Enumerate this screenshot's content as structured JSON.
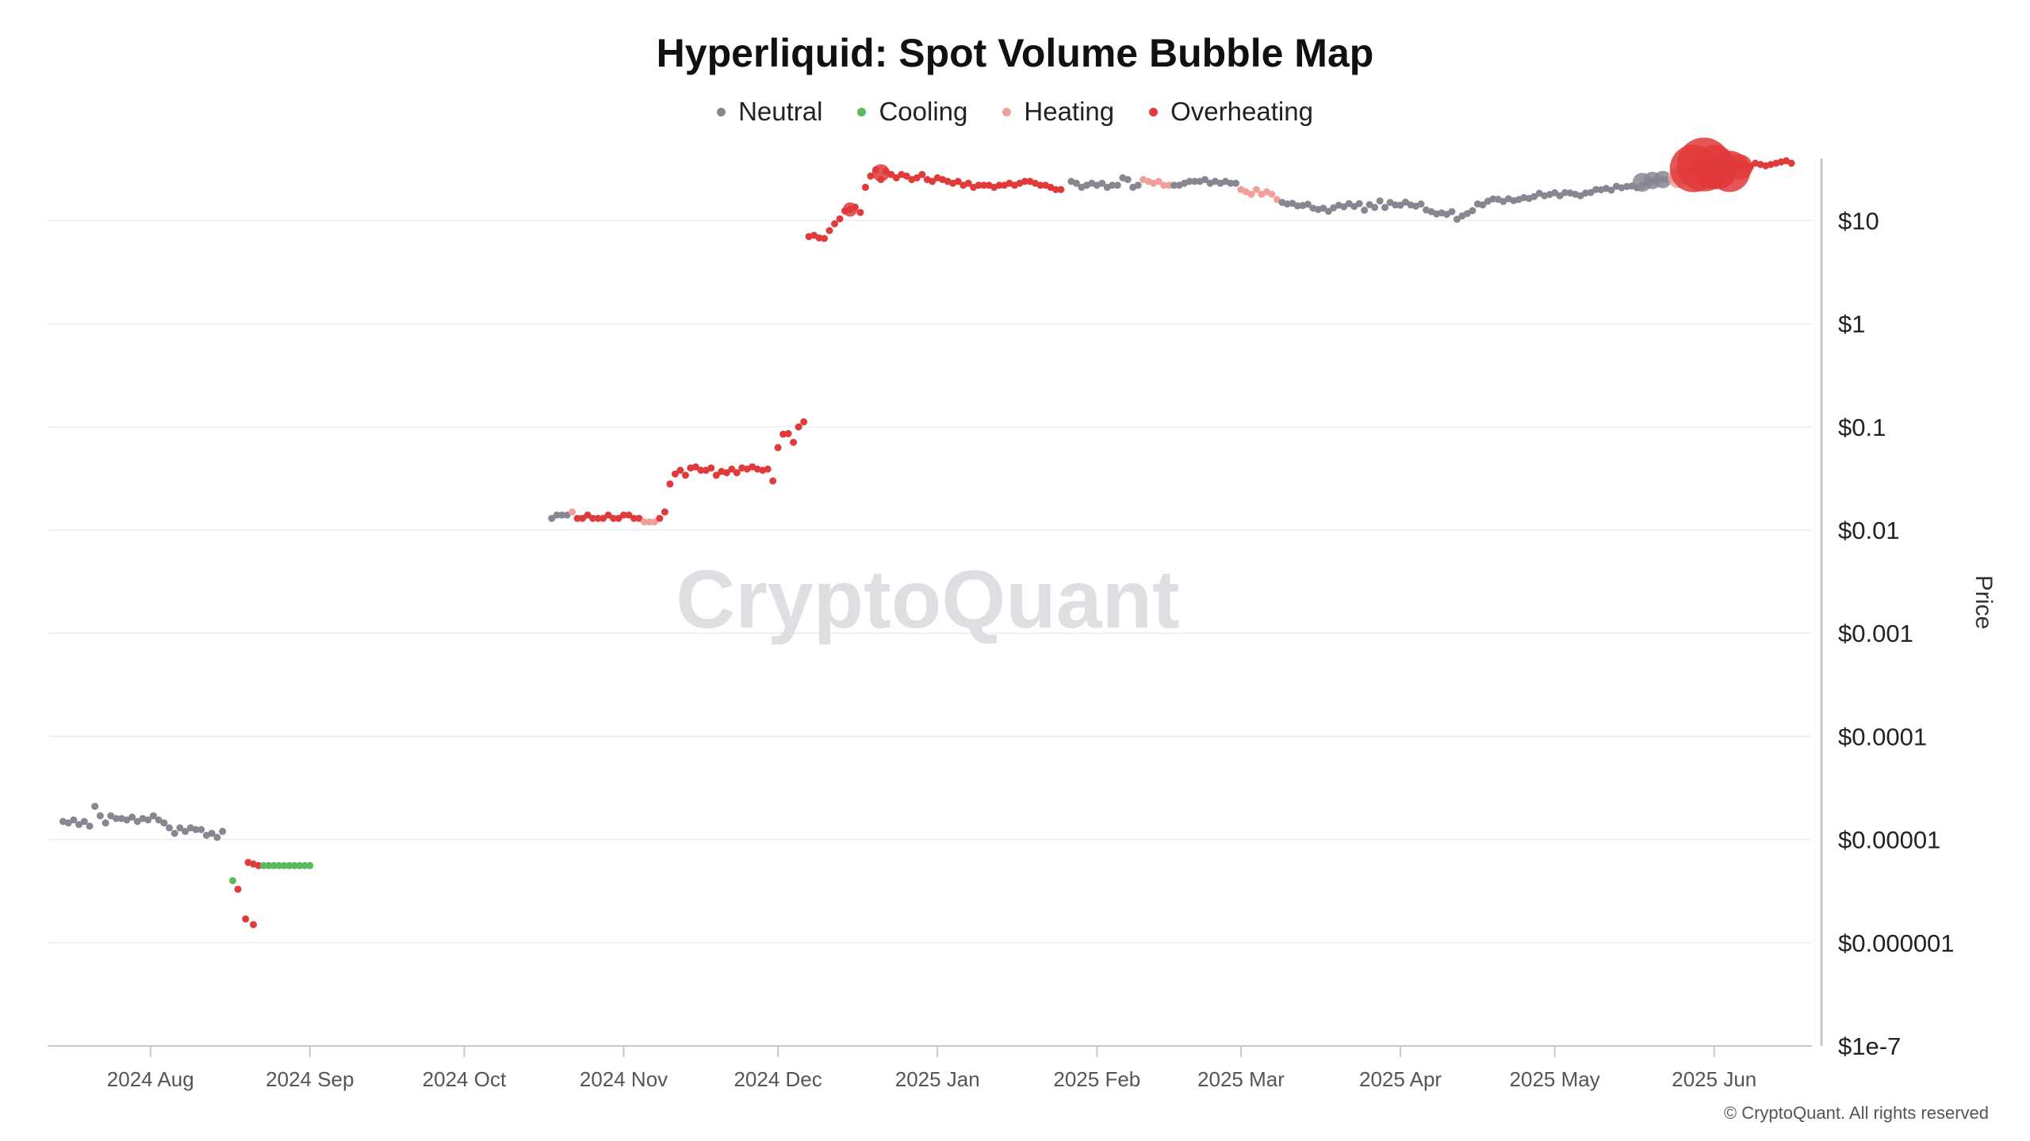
{
  "chart_data": {
    "type": "scatter",
    "title": "Hyperliquid: Spot Volume Bubble Map",
    "ylabel": "Price",
    "y_scale": "log",
    "ylim": [
      1e-07,
      40
    ],
    "y_ticks": [
      {
        "value": 10,
        "label": "$10"
      },
      {
        "value": 1,
        "label": "$1"
      },
      {
        "value": 0.1,
        "label": "$0.1"
      },
      {
        "value": 0.01,
        "label": "$0.01"
      },
      {
        "value": 0.001,
        "label": "$0.001"
      },
      {
        "value": 0.0001,
        "label": "$0.0001"
      },
      {
        "value": 1e-05,
        "label": "$0.00001"
      },
      {
        "value": 1e-06,
        "label": "$0.000001"
      },
      {
        "value": 1e-07,
        "label": "$1e-7"
      }
    ],
    "xlim": [
      "2024-07-12",
      "2025-06-20"
    ],
    "x_ticks": [
      {
        "value": "2024-08-01",
        "label": "2024 Aug"
      },
      {
        "value": "2024-09-01",
        "label": "2024 Sep"
      },
      {
        "value": "2024-10-01",
        "label": "2024 Oct"
      },
      {
        "value": "2024-11-01",
        "label": "2024 Nov"
      },
      {
        "value": "2024-12-01",
        "label": "2024 Dec"
      },
      {
        "value": "2025-01-01",
        "label": "2025 Jan"
      },
      {
        "value": "2025-02-01",
        "label": "2025 Feb"
      },
      {
        "value": "2025-03-01",
        "label": "2025 Mar"
      },
      {
        "value": "2025-04-01",
        "label": "2025 Apr"
      },
      {
        "value": "2025-05-01",
        "label": "2025 May"
      },
      {
        "value": "2025-06-01",
        "label": "2025 Jun"
      }
    ],
    "grid": true,
    "legend_position": "top-center",
    "categories": [
      {
        "key": "neutral",
        "label": "Neutral",
        "color": "#878791"
      },
      {
        "key": "cooling",
        "label": "Cooling",
        "color": "#5cb85c"
      },
      {
        "key": "heating",
        "label": "Heating",
        "color": "#f0a09a"
      },
      {
        "key": "overheating",
        "label": "Overheating",
        "color": "#e03a3a"
      }
    ],
    "segments": [
      {
        "category": "neutral",
        "start": "2024-07-15",
        "end": "2024-08-15",
        "prices": [
          1.5e-05,
          1.45e-05,
          1.55e-05,
          1.4e-05,
          1.5e-05,
          1.35e-05,
          2.1e-05,
          1.7e-05,
          1.45e-05,
          1.7e-05,
          1.6e-05,
          1.6e-05,
          1.55e-05,
          1.65e-05,
          1.5e-05,
          1.6e-05,
          1.55e-05,
          1.7e-05,
          1.55e-05,
          1.45e-05,
          1.3e-05,
          1.15e-05,
          1.3e-05,
          1.2e-05,
          1.3e-05,
          1.25e-05,
          1.25e-05,
          1.1e-05,
          1.15e-05,
          1.05e-05,
          1.2e-05
        ]
      },
      {
        "category": "cooling",
        "start": "2024-08-17",
        "end": "2024-08-17",
        "prices": [
          4e-06
        ]
      },
      {
        "category": "overheating",
        "start": "2024-08-18",
        "end": "2024-08-21",
        "prices": [
          3.3e-06,
          1.7e-06,
          1.5e-06
        ]
      },
      {
        "category": "overheating",
        "start": "2024-08-20",
        "end": "2024-08-22",
        "prices": [
          6e-06,
          5.8e-06,
          5.6e-06
        ]
      },
      {
        "category": "cooling",
        "start": "2024-08-23",
        "end": "2024-09-01",
        "prices": [
          5.6e-06,
          5.6e-06,
          5.6e-06,
          5.6e-06,
          5.6e-06,
          5.6e-06,
          5.6e-06,
          5.6e-06,
          5.6e-06,
          5.6e-06
        ]
      },
      {
        "category": "neutral",
        "start": "2024-10-18",
        "end": "2024-10-21",
        "prices": [
          0.013,
          0.014,
          0.014,
          0.014
        ]
      },
      {
        "category": "heating",
        "start": "2024-10-22",
        "end": "2024-10-22",
        "prices": [
          0.015
        ]
      },
      {
        "category": "overheating",
        "start": "2024-10-23",
        "end": "2024-11-01",
        "prices": [
          0.013,
          0.013,
          0.014,
          0.013,
          0.013,
          0.013,
          0.014,
          0.013,
          0.013,
          0.014
        ]
      },
      {
        "category": "overheating",
        "start": "2024-11-02",
        "end": "2024-11-04",
        "prices": [
          0.014,
          0.013,
          0.013
        ]
      },
      {
        "category": "heating",
        "start": "2024-11-05",
        "end": "2024-11-07",
        "prices": [
          0.012,
          0.012,
          0.012
        ]
      },
      {
        "category": "overheating",
        "start": "2024-11-08",
        "end": "2024-11-29",
        "prices": [
          0.013,
          0.015,
          0.028,
          0.035,
          0.038,
          0.034,
          0.04,
          0.041,
          0.038,
          0.038,
          0.04,
          0.034,
          0.037,
          0.036,
          0.039,
          0.036,
          0.04,
          0.039,
          0.041,
          0.039,
          0.038,
          0.039
        ]
      },
      {
        "category": "overheating",
        "start": "2024-11-30",
        "end": "2024-12-06",
        "prices": [
          0.03,
          0.063,
          0.085,
          0.086,
          0.071,
          0.1,
          0.112
        ]
      },
      {
        "category": "overheating",
        "start": "2024-12-07",
        "end": "2024-12-18",
        "prices": [
          7.0,
          7.2,
          6.8,
          6.7,
          8.0,
          9.3,
          10.4,
          12.4,
          12.8,
          13.5,
          12.0,
          21.0
        ]
      },
      {
        "category": "overheating",
        "start": "2024-12-19",
        "end": "2025-01-25",
        "prices": [
          27,
          31,
          25,
          30,
          28,
          26,
          28,
          27,
          25,
          26,
          28,
          25,
          24,
          26,
          25,
          24,
          23,
          24,
          22,
          23,
          21,
          22,
          22,
          22,
          21,
          22,
          22,
          23,
          22,
          23,
          24,
          24,
          23,
          22,
          22,
          21,
          20,
          20
        ]
      },
      {
        "category": "neutral",
        "start": "2025-01-27",
        "end": "2025-02-09",
        "prices": [
          24,
          23,
          21,
          22,
          23,
          22,
          23,
          21,
          22,
          22,
          26,
          25,
          21,
          22
        ]
      },
      {
        "category": "heating",
        "start": "2025-02-10",
        "end": "2025-02-15",
        "prices": [
          25,
          24,
          23,
          24,
          22,
          22
        ]
      },
      {
        "category": "neutral",
        "start": "2025-02-16",
        "end": "2025-02-28",
        "prices": [
          22,
          22,
          23,
          24,
          24,
          24,
          25,
          23,
          24,
          23,
          24,
          23,
          23
        ]
      },
      {
        "category": "heating",
        "start": "2025-03-01",
        "end": "2025-03-07",
        "prices": [
          20,
          19,
          18,
          20,
          18,
          19,
          18
        ]
      },
      {
        "category": "heating",
        "start": "2025-03-08",
        "end": "2025-03-08",
        "prices": [
          16
        ]
      },
      {
        "category": "neutral",
        "start": "2025-03-09",
        "end": "2025-05-18",
        "prices": [
          15,
          14.5,
          14.7,
          13.9,
          14,
          14.4,
          13.2,
          12.8,
          13.2,
          12.3,
          13.3,
          14.1,
          13.6,
          14.6,
          13.7,
          14.6,
          12.6,
          14.3,
          13.4,
          15.5,
          13.4,
          15,
          14.2,
          14.1,
          15.1,
          14.2,
          13.8,
          14.5,
          12.7,
          12.2,
          11.6,
          11.9,
          11.5,
          12.2,
          10.3,
          11.1,
          11.7,
          12.5,
          14.5,
          14.2,
          15.4,
          16.2,
          16.1,
          15.3,
          16.3,
          15.6,
          16,
          16.7,
          16.4,
          17.1,
          18.4,
          17.4,
          17.9,
          18.6,
          17.4,
          18.7,
          18.5,
          18,
          17.4,
          18.5,
          18.7,
          20,
          19.9,
          20.5,
          19.7,
          21.5,
          20.8,
          21.4,
          21.6,
          20.8,
          21.9
        ]
      },
      {
        "category": "neutral",
        "start": "2025-05-19",
        "end": "2025-05-23",
        "prices": [
          23,
          24,
          25,
          25,
          25
        ]
      },
      {
        "category": "heating",
        "start": "2025-05-24",
        "end": "2025-05-26",
        "prices": [
          25,
          26,
          27
        ]
      },
      {
        "category": "overheating",
        "start": "2025-05-27",
        "end": "2025-06-16",
        "prices": [
          30,
          32,
          33,
          35,
          34,
          33,
          31,
          30,
          32,
          33,
          34,
          35,
          33,
          36,
          35,
          34,
          35,
          36,
          37,
          38,
          36
        ]
      }
    ]
  },
  "watermark": "CryptoQuant",
  "copyright": "© CryptoQuant. All rights reserved"
}
